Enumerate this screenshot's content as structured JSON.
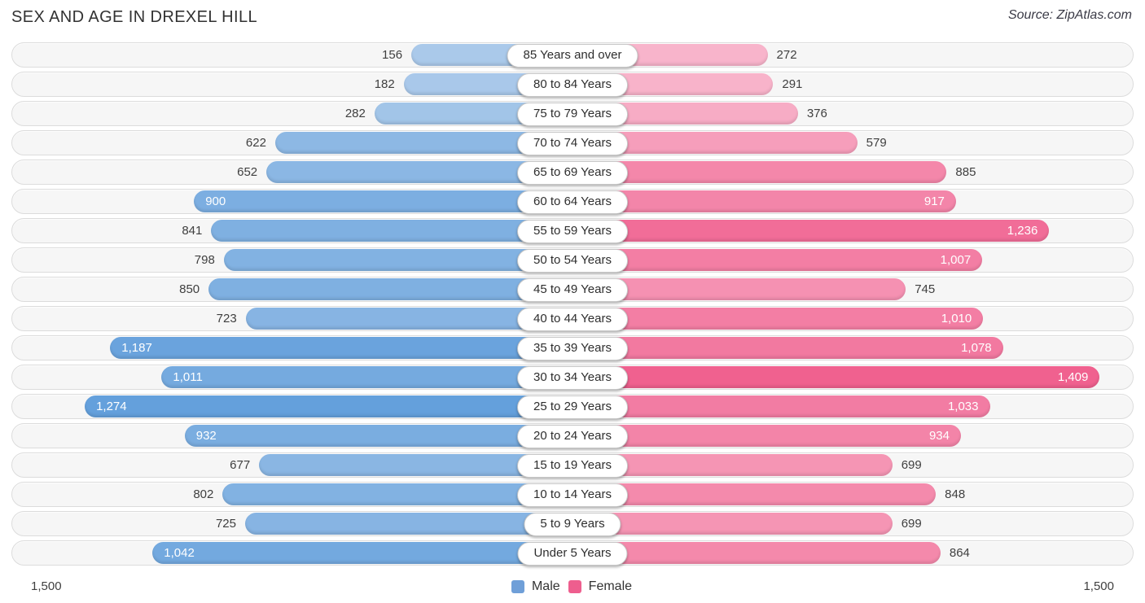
{
  "header": {
    "title": "SEX AND AGE IN DREXEL HILL",
    "source": "Source: ZipAtlas.com"
  },
  "chart_data": {
    "type": "bar",
    "subtype": "population-pyramid",
    "title": "SEX AND AGE IN DREXEL HILL",
    "categories": [
      "85 Years and over",
      "80 to 84 Years",
      "75 to 79 Years",
      "70 to 74 Years",
      "65 to 69 Years",
      "60 to 64 Years",
      "55 to 59 Years",
      "50 to 54 Years",
      "45 to 49 Years",
      "40 to 44 Years",
      "35 to 39 Years",
      "30 to 34 Years",
      "25 to 29 Years",
      "20 to 24 Years",
      "15 to 19 Years",
      "10 to 14 Years",
      "5 to 9 Years",
      "Under 5 Years"
    ],
    "series": [
      {
        "name": "Male",
        "values": [
          156,
          182,
          282,
          622,
          652,
          900,
          841,
          798,
          850,
          723,
          1187,
          1011,
          1274,
          932,
          677,
          802,
          725,
          1042
        ]
      },
      {
        "name": "Female",
        "values": [
          272,
          291,
          376,
          579,
          885,
          917,
          1236,
          1007,
          745,
          1010,
          1078,
          1409,
          1033,
          934,
          699,
          848,
          699,
          864
        ]
      }
    ],
    "xlim": [
      0,
      1500
    ],
    "axis_labels": {
      "left": "1,500",
      "right": "1,500"
    },
    "legend": [
      {
        "label": "Male",
        "color": "#6f9fd8"
      },
      {
        "label": "Female",
        "color": "#ee5e8e"
      }
    ],
    "inside_label_threshold": 900,
    "grid": false
  },
  "colors": {
    "male_light": "#b4cfec",
    "male_dark": "#5698d9",
    "female_light": "#fac8d9",
    "female_dark": "#ef5a8a",
    "row_bg": "#f6f6f6",
    "row_border": "#dcdcdc"
  }
}
